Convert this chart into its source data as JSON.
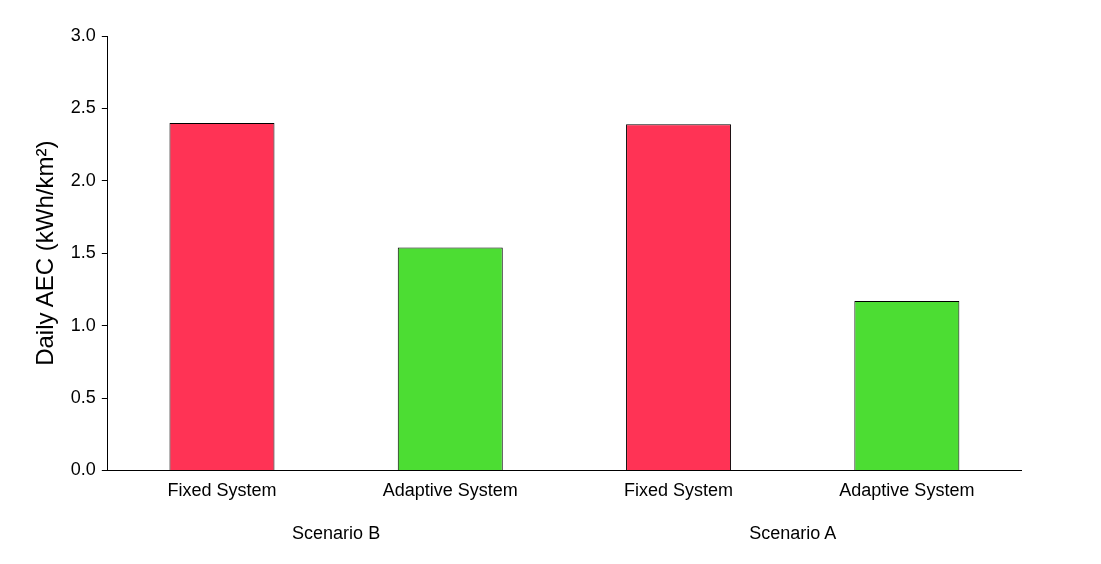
{
  "chart_data": {
    "type": "bar",
    "ylabel": "Daily AEC (kWh/km²)",
    "categories": [
      "Fixed System",
      "Adaptive System",
      "Fixed System",
      "Adaptive System"
    ],
    "values": [
      2.4,
      1.54,
      2.39,
      1.17
    ],
    "colors": [
      "#ff3355",
      "#4cdd33",
      "#ff3355",
      "#4cdd33"
    ],
    "ylim": [
      0,
      3
    ],
    "yticks": [
      {
        "value": 0,
        "label": "0.0"
      },
      {
        "value": 0.5,
        "label": "0.5"
      },
      {
        "value": 1,
        "label": "1.0"
      },
      {
        "value": 1.5,
        "label": "1.5"
      },
      {
        "value": 2,
        "label": "2.0"
      },
      {
        "value": 2.5,
        "label": "2.5"
      },
      {
        "value": 3,
        "label": "3.0"
      }
    ],
    "grid": false,
    "legend": false,
    "annotations": [
      "Scenario B",
      "Scenario A"
    ]
  }
}
